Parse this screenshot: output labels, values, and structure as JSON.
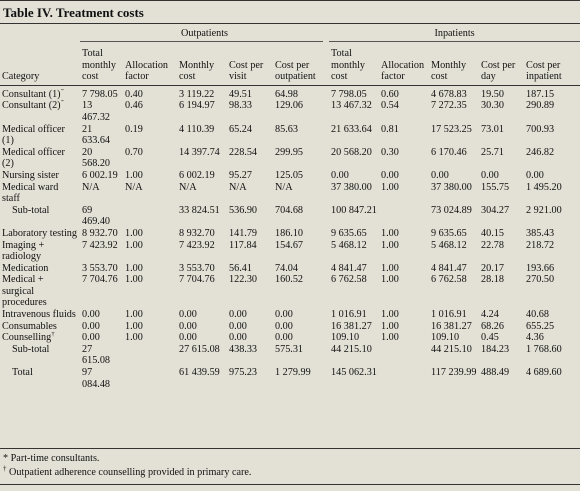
{
  "title": "Table IV. Treatment costs",
  "groups": {
    "outpatients": "Outpatients",
    "inpatients": "Inpatients"
  },
  "headers": {
    "category": "Category",
    "op": [
      "Total monthly cost",
      "Allocation factor",
      "Monthly cost",
      "Cost per visit",
      "Cost per outpatient"
    ],
    "ip": [
      "Total monthly cost",
      "Allocation factor",
      "Monthly cost",
      "Cost per day",
      "Cost per inpatient"
    ]
  },
  "rows": [
    {
      "label": "Consultant (1)",
      "mark": "*",
      "cells": [
        "7 798.05",
        "0.40",
        "3 119.22",
        "49.51",
        "64.98",
        "7 798.05",
        "0.60",
        "4 678.83",
        "19.50",
        "187.15"
      ]
    },
    {
      "label": "Consultant (2)",
      "mark": "*",
      "cells": [
        "13 467.32",
        "0.46",
        "6 194.97",
        "98.33",
        "129.06",
        "13 467.32",
        "0.54",
        "7 272.35",
        "30.30",
        "290.89"
      ]
    },
    {
      "label": "Medical officer (1)",
      "cells": [
        "21 633.64",
        "0.19",
        "4 110.39",
        "65.24",
        "85.63",
        "21 633.64",
        "0.81",
        "17 523.25",
        "73.01",
        "700.93"
      ]
    },
    {
      "label": "Medical officer (2)",
      "cells": [
        "20 568.20",
        "0.70",
        "14 397.74",
        "228.54",
        "299.95",
        "20 568.20",
        "0.30",
        "6 170.46",
        "25.71",
        "246.82"
      ]
    },
    {
      "label": "Nursing sister",
      "cells": [
        "6 002.19",
        "1.00",
        "6 002.19",
        "95.27",
        "125.05",
        "0.00",
        "0.00",
        "0.00",
        "0.00",
        "0.00"
      ]
    },
    {
      "label": "Medical ward staff",
      "cells": [
        "N/A",
        "N/A",
        "N/A",
        "N/A",
        "N/A",
        "37 380.00",
        "1.00",
        "37 380.00",
        "155.75",
        "1 495.20"
      ]
    },
    {
      "label": "Sub-total",
      "indent": true,
      "cells": [
        "69 469.40",
        "",
        "33 824.51",
        "536.90",
        "704.68",
        "100 847.21",
        "",
        "73 024.89",
        "304.27",
        "2 921.00"
      ]
    },
    {
      "label": "Laboratory testing",
      "cells": [
        "8 932.70",
        "1.00",
        "8 932.70",
        "141.79",
        "186.10",
        "9 635.65",
        "1.00",
        "9 635.65",
        "40.15",
        "385.43"
      ]
    },
    {
      "label": "Imaging + radiology",
      "cells": [
        "7 423.92",
        "1.00",
        "7 423.92",
        "117.84",
        "154.67",
        "5 468.12",
        "1.00",
        "5 468.12",
        "22.78",
        "218.72"
      ]
    },
    {
      "label": "Medication",
      "cells": [
        "3 553.70",
        "1.00",
        "3 553.70",
        "56.41",
        "74.04",
        "4 841.47",
        "1.00",
        "4 841.47",
        "20.17",
        "193.66"
      ]
    },
    {
      "label": "Medical + surgical procedures",
      "cells": [
        "7 704.76",
        "1.00",
        "7 704.76",
        "122.30",
        "160.52",
        "6 762.58",
        "1.00",
        "6 762.58",
        "28.18",
        "270.50"
      ]
    },
    {
      "label": "Intravenous fluids",
      "cells": [
        "0.00",
        "1.00",
        "0.00",
        "0.00",
        "0.00",
        "1 016.91",
        "1.00",
        "1 016.91",
        "4.24",
        "40.68"
      ]
    },
    {
      "label": "Consumables",
      "cells": [
        "0.00",
        "1.00",
        "0.00",
        "0.00",
        "0.00",
        "16 381.27",
        "1.00",
        "16 381.27",
        "68.26",
        "655.25"
      ]
    },
    {
      "label": "Counselling",
      "mark": "†",
      "cells": [
        "0.00",
        "1.00",
        "0.00",
        "0.00",
        "0.00",
        "109.10",
        "1.00",
        "109.10",
        "0.45",
        "4.36"
      ]
    },
    {
      "label": "Sub-total",
      "indent": true,
      "cells": [
        "27 615.08",
        "",
        "27 615.08",
        "438.33",
        "575.31",
        "44 215.10",
        "",
        "44 215.10",
        "184.23",
        "1 768.60"
      ]
    },
    {
      "label": "Total",
      "indent": true,
      "cells": [
        "97 084.48",
        "",
        "61 439.59",
        "975.23",
        "1 279.99",
        "145 062.31",
        "",
        "117 239.99",
        "488.49",
        "4 689.60"
      ]
    }
  ],
  "footnotes": [
    {
      "mark": "*",
      "text": "Part-time consultants."
    },
    {
      "mark": "†",
      "text": "Outpatient adherence counselling provided in primary care."
    }
  ]
}
